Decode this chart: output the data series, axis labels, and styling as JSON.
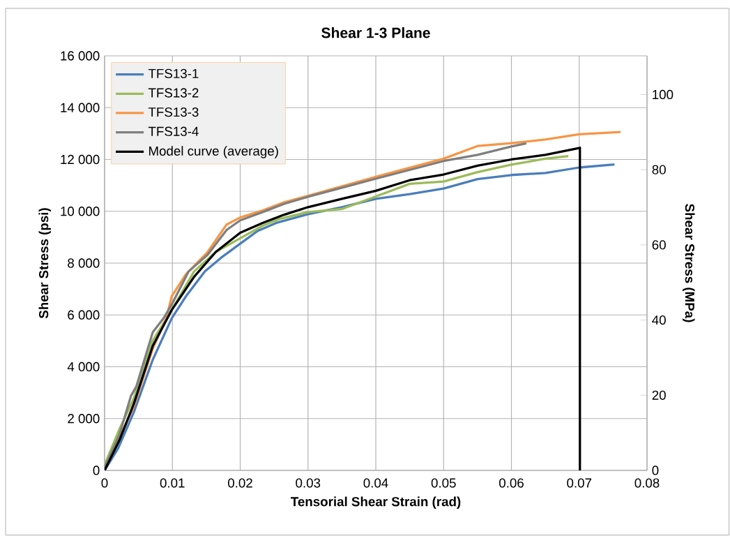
{
  "chart_data": {
    "type": "line",
    "title": "Shear 1-3 Plane",
    "xlabel": "Tensorial Shear Strain (rad)",
    "ylabel": "Shear Stress (psi)",
    "y2label": "Shear Stress (MPa)",
    "xlim": [
      0,
      0.08
    ],
    "xticks": [
      0,
      0.01,
      0.02,
      0.03,
      0.04,
      0.05,
      0.06,
      0.07,
      0.08
    ],
    "ylim": [
      0,
      16000
    ],
    "yticks": [
      0,
      {
        "value": 2000,
        "label": "2 000"
      },
      {
        "value": 4000,
        "label": "4 000"
      },
      {
        "value": 6000,
        "label": "6 000"
      },
      {
        "value": 8000,
        "label": "8 000"
      },
      {
        "value": 10000,
        "label": "10 000"
      },
      {
        "value": 12000,
        "label": "12 000"
      },
      {
        "value": 14000,
        "label": "14 000"
      },
      {
        "value": 16000,
        "label": "16 000"
      }
    ],
    "y2lim": [
      0,
      110.3
    ],
    "y2ticks": [
      0,
      20,
      40,
      60,
      80,
      100
    ],
    "grid": true,
    "legend": "top left",
    "marker": "none",
    "line_style": "solid",
    "series": [
      {
        "name": "TFS13-1",
        "color": "#4a7ebb",
        "x": [
          0,
          0.002,
          0.0043,
          0.0071,
          0.0099,
          0.012,
          0.0148,
          0.0172,
          0.02,
          0.0225,
          0.0253,
          0.03,
          0.035,
          0.04,
          0.045,
          0.05,
          0.055,
          0.06,
          0.065,
          0.07,
          0.0752
        ],
        "values": [
          0,
          850,
          2240,
          4270,
          5870,
          6720,
          7680,
          8210,
          8750,
          9230,
          9550,
          9890,
          10160,
          10480,
          10660,
          10880,
          11240,
          11400,
          11480,
          11690,
          11810
        ]
      },
      {
        "name": "TFS13-2",
        "color": "#9bbb59",
        "x": [
          0,
          0.0022,
          0.0043,
          0.0071,
          0.0099,
          0.0132,
          0.0164,
          0.02,
          0.0233,
          0.0257,
          0.03,
          0.035,
          0.04,
          0.045,
          0.05,
          0.055,
          0.06,
          0.065,
          0.0684
        ],
        "values": [
          210,
          1600,
          2770,
          5010,
          6190,
          7680,
          8430,
          8960,
          9440,
          9700,
          9970,
          10090,
          10570,
          11060,
          11150,
          11510,
          11800,
          12030,
          12130
        ]
      },
      {
        "name": "TFS13-3",
        "color": "#f79646",
        "x": [
          0,
          0.0022,
          0.0043,
          0.0071,
          0.0091,
          0.0099,
          0.012,
          0.0152,
          0.018,
          0.02,
          0.0233,
          0.0265,
          0.03,
          0.04,
          0.05,
          0.055,
          0.06,
          0.065,
          0.07,
          0.0761
        ],
        "values": [
          50,
          1280,
          2450,
          4690,
          5870,
          6720,
          7570,
          8430,
          9490,
          9760,
          10030,
          10350,
          10600,
          11330,
          12030,
          12520,
          12630,
          12770,
          12970,
          13060
        ]
      },
      {
        "name": "TFS13-4",
        "color": "#7f7f7f",
        "x": [
          0,
          0.0022,
          0.0039,
          0.0047,
          0.0071,
          0.0087,
          0.0099,
          0.0124,
          0.0152,
          0.018,
          0.02,
          0.0233,
          0.0265,
          0.03,
          0.04,
          0.05,
          0.055,
          0.06,
          0.0622
        ],
        "values": [
          110,
          1390,
          2880,
          3250,
          5330,
          5870,
          6400,
          7680,
          8320,
          9280,
          9650,
          9970,
          10290,
          10560,
          11260,
          11940,
          12180,
          12500,
          12620
        ]
      },
      {
        "name": "Model curve (average)",
        "color": "#000000",
        "x": [
          0,
          0.0022,
          0.0043,
          0.0071,
          0.0099,
          0.0132,
          0.0164,
          0.02,
          0.0233,
          0.0265,
          0.03,
          0.035,
          0.04,
          0.045,
          0.05,
          0.055,
          0.06,
          0.065,
          0.0701,
          0.0701
        ],
        "values": [
          0,
          1170,
          2560,
          4800,
          6190,
          7470,
          8430,
          9170,
          9550,
          9870,
          10160,
          10480,
          10790,
          11200,
          11420,
          11760,
          12000,
          12180,
          12450,
          0
        ]
      }
    ]
  }
}
